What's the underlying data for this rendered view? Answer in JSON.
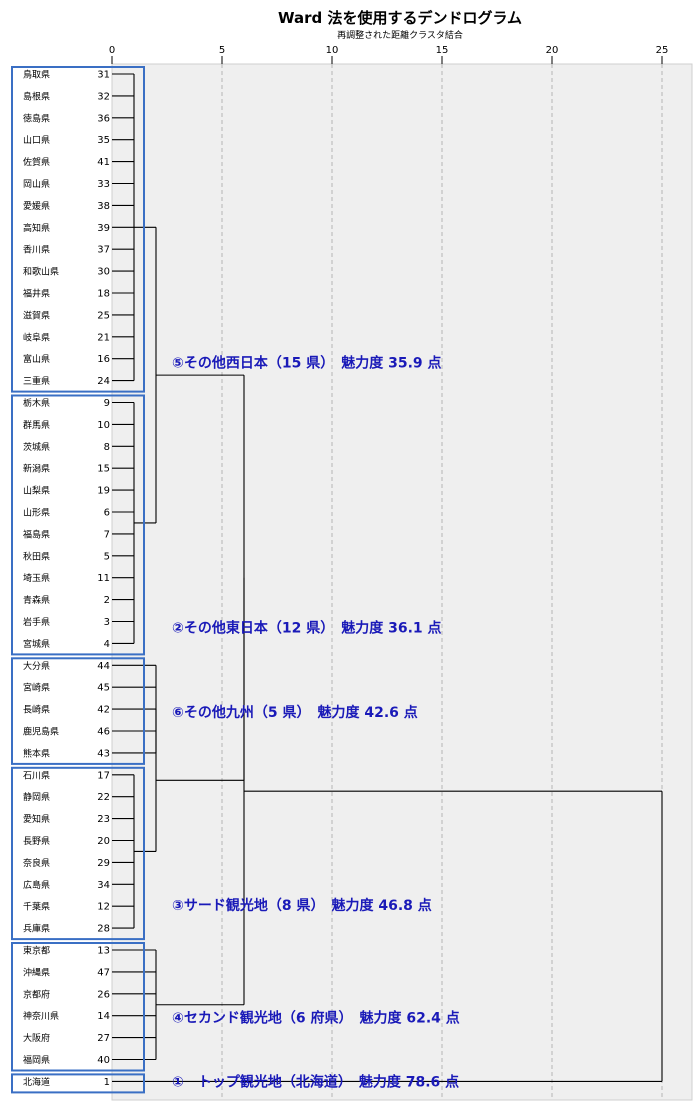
{
  "chart_data": {
    "type": "dendrogram",
    "title": "Ward 法を使用するデンドログラム",
    "subtitle": "再調整された距離クラスタ結合",
    "x_ticks": [
      0,
      5,
      10,
      15,
      20,
      25
    ],
    "x_range": [
      0,
      25
    ],
    "leaves": [
      {
        "name": "鳥取県",
        "id": "31"
      },
      {
        "name": "島根県",
        "id": "32"
      },
      {
        "name": "徳島県",
        "id": "36"
      },
      {
        "name": "山口県",
        "id": "35"
      },
      {
        "name": "佐賀県",
        "id": "41"
      },
      {
        "name": "岡山県",
        "id": "33"
      },
      {
        "name": "愛媛県",
        "id": "38"
      },
      {
        "name": "高知県",
        "id": "39"
      },
      {
        "name": "香川県",
        "id": "37"
      },
      {
        "name": "和歌山県",
        "id": "30"
      },
      {
        "name": "福井県",
        "id": "18"
      },
      {
        "name": "滋賀県",
        "id": "25"
      },
      {
        "name": "岐阜県",
        "id": "21"
      },
      {
        "name": "富山県",
        "id": "16"
      },
      {
        "name": "三重県",
        "id": "24"
      },
      {
        "name": "栃木県",
        "id": "9"
      },
      {
        "name": "群馬県",
        "id": "10"
      },
      {
        "name": "茨城県",
        "id": "8"
      },
      {
        "name": "新潟県",
        "id": "15"
      },
      {
        "name": "山梨県",
        "id": "19"
      },
      {
        "name": "山形県",
        "id": "6"
      },
      {
        "name": "福島県",
        "id": "7"
      },
      {
        "name": "秋田県",
        "id": "5"
      },
      {
        "name": "埼玉県",
        "id": "11"
      },
      {
        "name": "青森県",
        "id": "2"
      },
      {
        "name": "岩手県",
        "id": "3"
      },
      {
        "name": "宮城県",
        "id": "4"
      },
      {
        "name": "大分県",
        "id": "44"
      },
      {
        "name": "宮崎県",
        "id": "45"
      },
      {
        "name": "長崎県",
        "id": "42"
      },
      {
        "name": "鹿児島県",
        "id": "46"
      },
      {
        "name": "熊本県",
        "id": "43"
      },
      {
        "name": "石川県",
        "id": "17"
      },
      {
        "name": "静岡県",
        "id": "22"
      },
      {
        "name": "愛知県",
        "id": "23"
      },
      {
        "name": "長野県",
        "id": "20"
      },
      {
        "name": "奈良県",
        "id": "29"
      },
      {
        "name": "広島県",
        "id": "34"
      },
      {
        "name": "千葉県",
        "id": "12"
      },
      {
        "name": "兵庫県",
        "id": "28"
      },
      {
        "name": "東京都",
        "id": "13"
      },
      {
        "name": "沖縄県",
        "id": "47"
      },
      {
        "name": "京都府",
        "id": "26"
      },
      {
        "name": "神奈川県",
        "id": "14"
      },
      {
        "name": "大阪府",
        "id": "27"
      },
      {
        "name": "福岡県",
        "id": "40"
      },
      {
        "name": "北海道",
        "id": "1"
      }
    ],
    "clusters": [
      {
        "label": "⑤その他西日本（15 県）　魅力度 35.9 点",
        "first": 0,
        "last": 14
      },
      {
        "label": "②その他東日本（12 県）　魅力度 36.1 点",
        "first": 15,
        "last": 26
      },
      {
        "label": "⑥その他九州（5 県）　魅力度 42.6 点",
        "first": 27,
        "last": 31
      },
      {
        "label": "③サード観光地（8 県）　魅力度 46.8 点",
        "first": 32,
        "last": 39
      },
      {
        "label": "④セカンド観光地（6 府県）　魅力度 62.4 点",
        "first": 40,
        "last": 45
      },
      {
        "label": "①　トップ観光地（北海道）　魅力度 78.6 点",
        "first": 46,
        "last": 46
      }
    ],
    "merges": [
      {
        "id": "A",
        "children": [
          "L0-14"
        ],
        "height": 1.0
      },
      {
        "id": "B",
        "children": [
          "L15-26"
        ],
        "height": 1.0
      },
      {
        "id": "C",
        "children": [
          "L27-31"
        ],
        "height": 2.0
      },
      {
        "id": "D",
        "children": [
          "L32-39"
        ],
        "height": 1.0
      },
      {
        "id": "E",
        "children": [
          "L40-45"
        ],
        "height": 2.0
      },
      {
        "id": "AB",
        "children": [
          "A",
          "B"
        ],
        "height": 2.0
      },
      {
        "id": "CD",
        "children": [
          "C",
          "D"
        ],
        "height": 2.0
      },
      {
        "id": "ABCD",
        "children": [
          "AB",
          "CD"
        ],
        "height": 6.0
      },
      {
        "id": "ABCDE",
        "children": [
          "ABCD",
          "E"
        ],
        "height": 6.0
      },
      {
        "id": "ALL",
        "children": [
          "ABCDE",
          "L46"
        ],
        "height": 25.0
      }
    ],
    "colors": {
      "annotation": "#1a1ab8",
      "cluster_box": "#3a6fc4",
      "line": "#000000",
      "plot_background": "#efefef"
    }
  }
}
